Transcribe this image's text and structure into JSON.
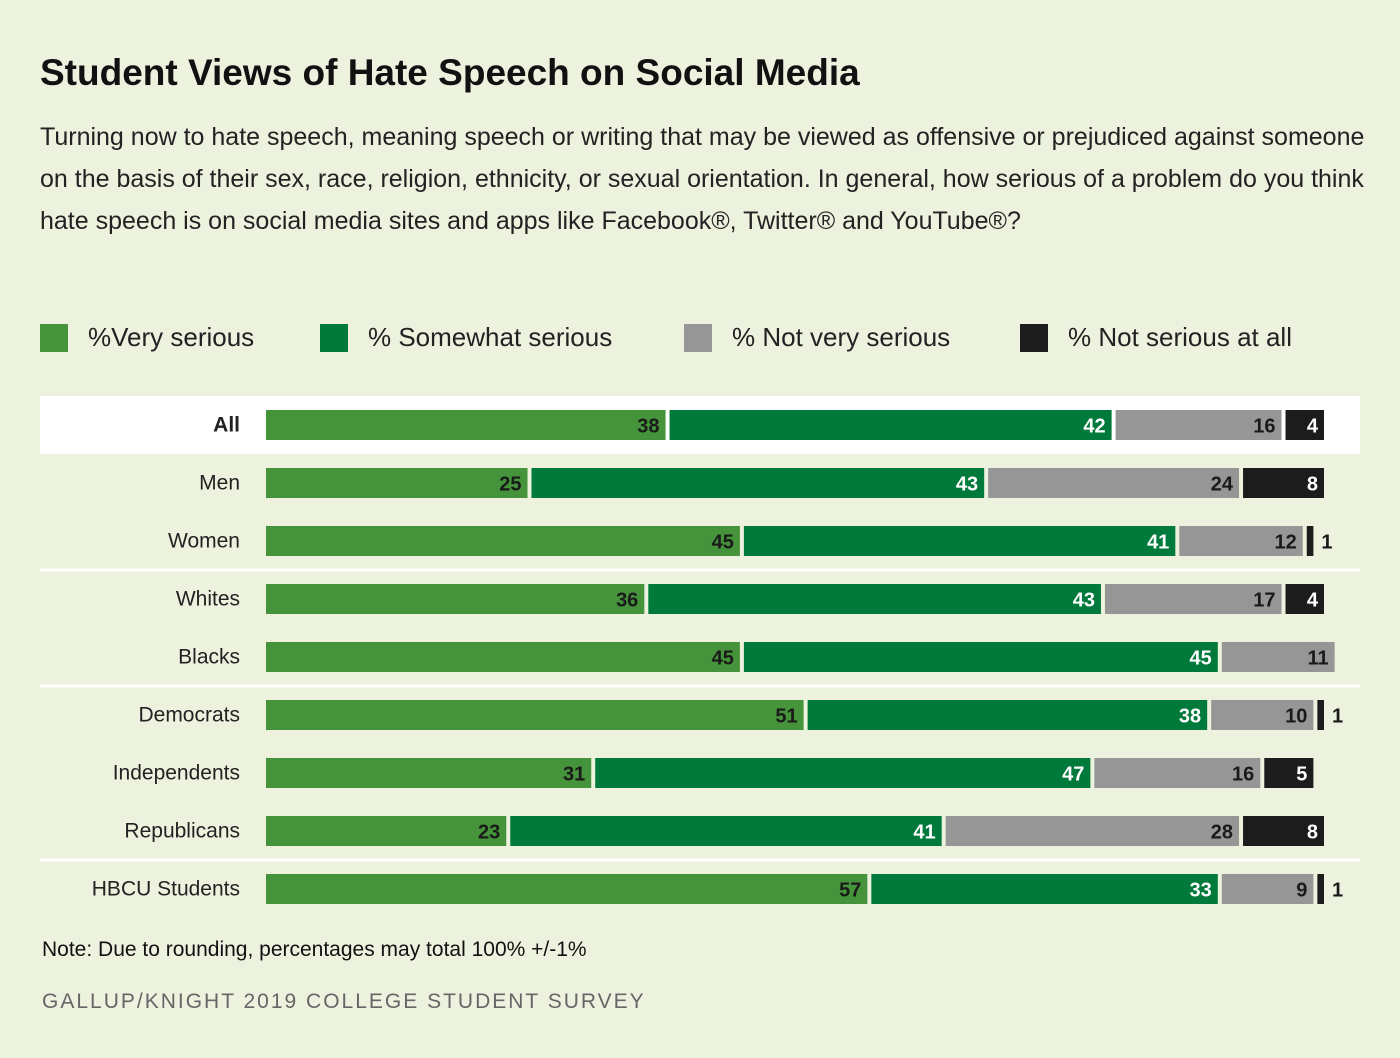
{
  "chart_data": {
    "type": "stacked-bar",
    "title": "Student Views of Hate Speech on Social Media",
    "subtitle": "Turning now to hate speech, meaning speech or writing that may be viewed as offensive or prejudiced against someone on the basis of their sex, race, religion, ethnicity, or sexual orientation. In general, how serious of a problem do you think hate speech is on social media sites and apps like Facebook®, Twitter® and YouTube®?",
    "categories": [
      "All",
      "Men",
      "Women",
      "Whites",
      "Blacks",
      "Democrats",
      "Independents",
      "Republicans",
      "HBCU Students"
    ],
    "series": [
      {
        "name": "%Very serious",
        "color": "#45933a",
        "values": [
          38,
          25,
          45,
          36,
          45,
          51,
          31,
          23,
          57
        ]
      },
      {
        "name": "% Somewhat serious",
        "color": "#007a3a",
        "values": [
          42,
          43,
          41,
          43,
          45,
          38,
          47,
          41,
          33
        ]
      },
      {
        "name": "% Not very serious",
        "color": "#969696",
        "values": [
          16,
          24,
          12,
          17,
          11,
          10,
          16,
          28,
          9
        ]
      },
      {
        "name": "% Not serious at all",
        "color": "#1c1c1c",
        "values": [
          4,
          8,
          1,
          4,
          null,
          1,
          5,
          8,
          1
        ]
      }
    ],
    "xlim": [
      0,
      100
    ],
    "note": "Note: Due to rounding, percentages may total 100% +/-1%",
    "source": "GALLUP/KNIGHT 2019 COLLEGE STUDENT SURVEY"
  }
}
